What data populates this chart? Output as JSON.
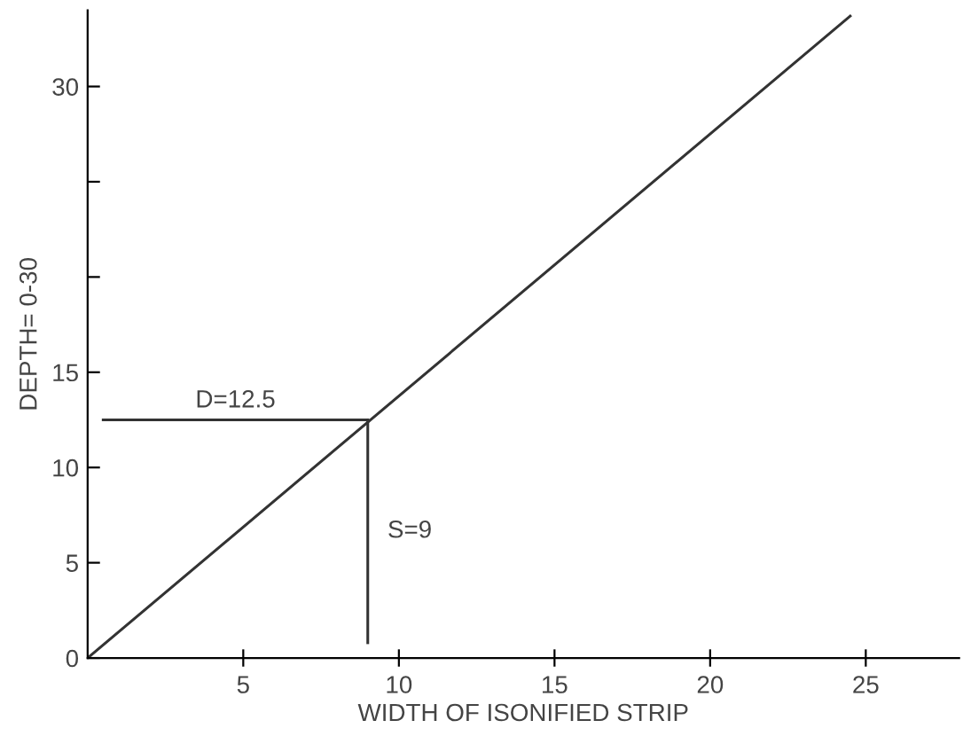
{
  "chart_data": {
    "type": "line",
    "xlabel": "WIDTH OF ISONIFIED STRIP",
    "ylabel": "DEPTH= 0-30",
    "series": [
      {
        "color": "#333333",
        "x": [
          0,
          24.5
        ],
        "values": [
          0,
          33.7
        ]
      },
      {
        "color": "#333333",
        "x": [
          0.5,
          9
        ],
        "values": [
          12.5,
          12.5
        ]
      },
      {
        "color": "#333333",
        "x": [
          9,
          9
        ],
        "values": [
          0.8,
          12.5
        ]
      }
    ],
    "annotations": [
      "D=12.5",
      "S=9"
    ],
    "xlim": [
      0,
      28
    ],
    "ylim": [
      0,
      34
    ],
    "xticks": [
      5,
      10,
      15,
      20,
      25
    ],
    "yticks": [
      0,
      5,
      10,
      15,
      {
        "value": 20,
        "label": null
      },
      {
        "value": 25,
        "label": null
      },
      30
    ],
    "grid": false,
    "marker": "none",
    "line_style": "solid"
  }
}
